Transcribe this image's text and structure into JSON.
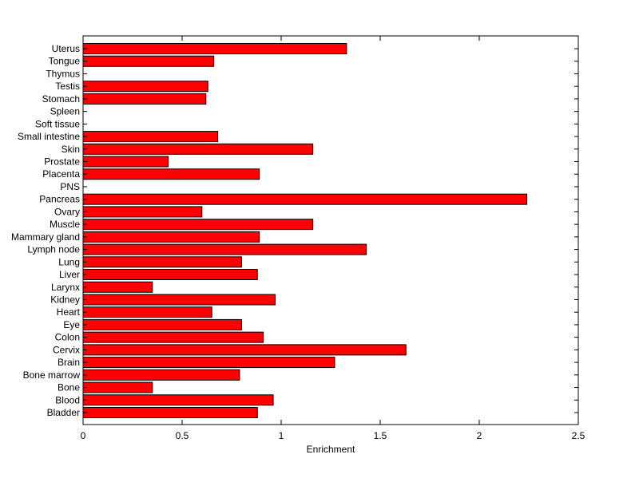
{
  "chart_data": {
    "type": "bar",
    "orientation": "horizontal",
    "title": "",
    "xlabel": "Enrichment",
    "ylabel": "",
    "xlim": [
      0,
      2.5
    ],
    "xticks": [
      0,
      0.5,
      1,
      1.5,
      2,
      2.5
    ],
    "xtick_labels": [
      "0",
      "0.5",
      "1",
      "1.5",
      "2",
      "2.5"
    ],
    "grid": false,
    "bar_color": "#ff0000",
    "bar_edge_color": "#000000",
    "categories": [
      "Bladder",
      "Blood",
      "Bone",
      "Bone marrow",
      "Brain",
      "Cervix",
      "Colon",
      "Eye",
      "Heart",
      "Kidney",
      "Larynx",
      "Liver",
      "Lung",
      "Lymph node",
      "Mammary gland",
      "Muscle",
      "Ovary",
      "Pancreas",
      "PNS",
      "Placenta",
      "Prostate",
      "Skin",
      "Small intestine",
      "Soft tissue",
      "Spleen",
      "Stomach",
      "Testis",
      "Thymus",
      "Tongue",
      "Uterus"
    ],
    "values": [
      0.88,
      0.96,
      0.35,
      0.79,
      1.27,
      1.63,
      0.91,
      0.8,
      0.65,
      0.97,
      0.35,
      0.88,
      0.8,
      1.43,
      0.89,
      1.16,
      0.6,
      2.24,
      0,
      0.89,
      0.43,
      1.16,
      0.68,
      0,
      0,
      0.62,
      0.63,
      0,
      0.66,
      1.33
    ]
  }
}
